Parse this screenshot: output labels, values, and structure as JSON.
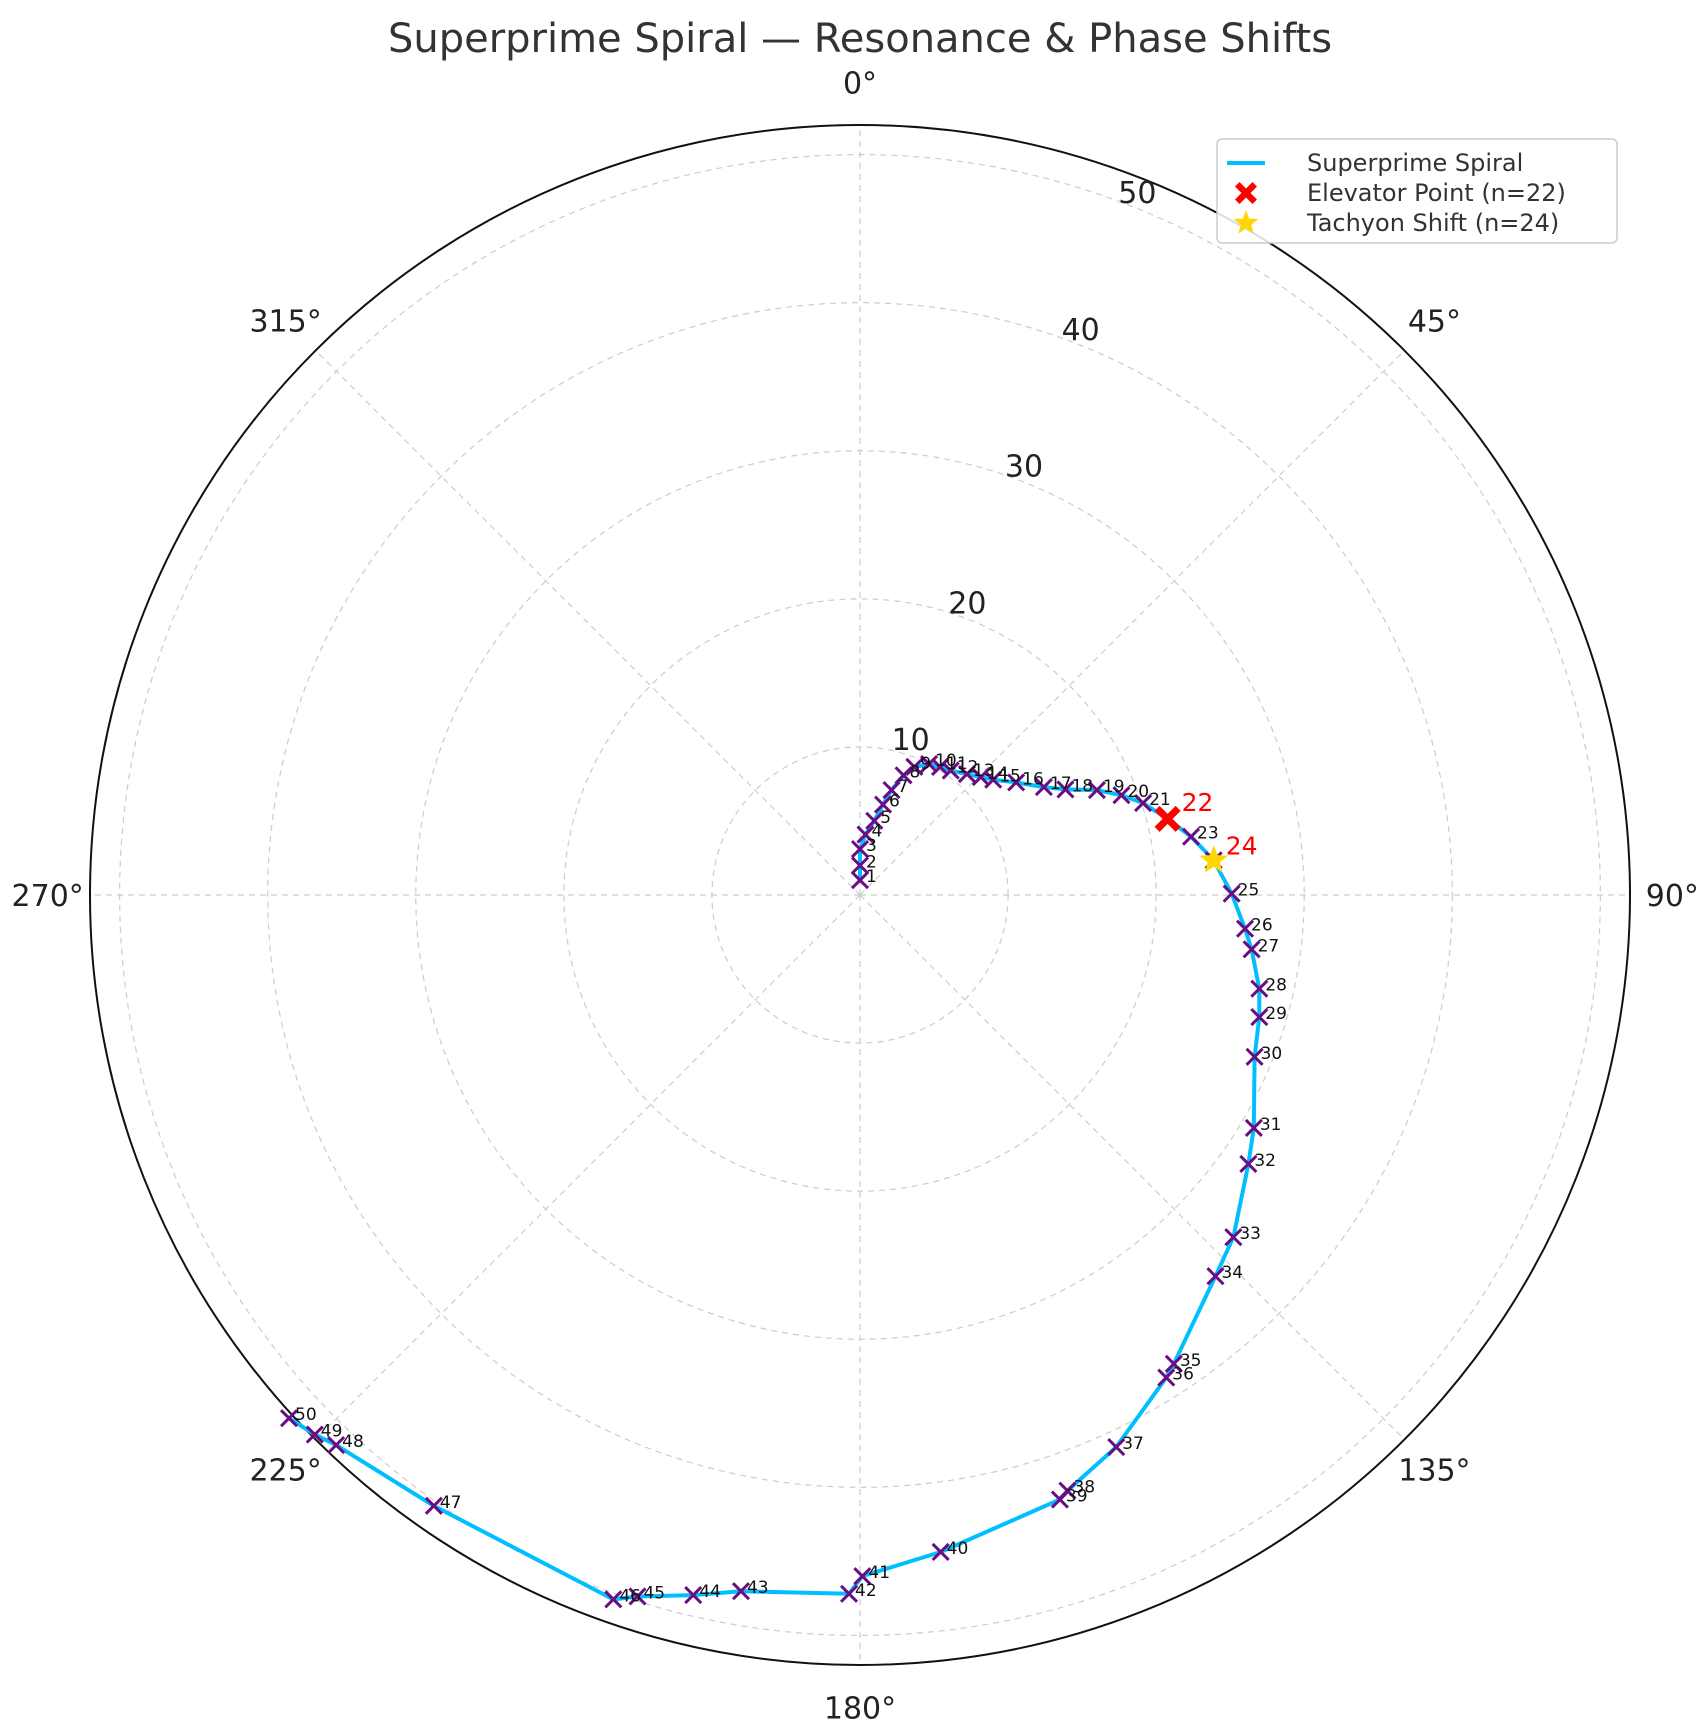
{
  "chart_data": {
    "type": "polar-line",
    "title": "Superprime Spiral — Resonance & Phase Shifts",
    "theta_direction": "clockwise",
    "theta_zero": "top",
    "theta_ticks": [
      "0°",
      "45°",
      "90°",
      "135°",
      "180°",
      "225°",
      "270°",
      "315°"
    ],
    "theta_tick_values": [
      0,
      45,
      90,
      135,
      180,
      225,
      270,
      315
    ],
    "r_ticks": [
      "10",
      "20",
      "30",
      "40",
      "50"
    ],
    "r_tick_values": [
      10,
      20,
      30,
      40,
      50
    ],
    "rlim": [
      0,
      52
    ],
    "grid": true,
    "legend_position": "top-right",
    "series": [
      {
        "name": "Superprime Spiral",
        "color": "#00bfff",
        "marker": "x",
        "marker_color": "#6a0d83",
        "n": [
          1,
          2,
          3,
          4,
          5,
          6,
          7,
          8,
          9,
          10,
          11,
          12,
          13,
          14,
          15,
          16,
          17,
          18,
          19,
          20,
          21,
          22,
          23,
          24,
          25,
          26,
          27,
          28,
          29,
          30,
          31,
          32,
          33,
          34,
          35,
          36,
          37,
          38,
          39,
          40,
          41,
          42,
          43,
          44,
          45,
          46,
          47,
          48,
          49,
          50
        ],
        "r": [
          1.0,
          2.0,
          3.1,
          4.1,
          5.1,
          6.3,
          7.4,
          8.6,
          9.4,
          10.0,
          10.2,
          10.4,
          10.9,
          11.4,
          11.9,
          13.0,
          14.4,
          15.6,
          17.5,
          18.9,
          20.1,
          21.4,
          22.7,
          24.0,
          25.1,
          26.1,
          26.7,
          27.7,
          28.2,
          28.8,
          30.9,
          31.9,
          34.2,
          35.2,
          38.1,
          38.6,
          41.1,
          42.6,
          43.0,
          44.7,
          46.0,
          47.2,
          47.7,
          48.6,
          49.7,
          50.4,
          50.3,
          51.3,
          51.8,
          52.3
        ],
        "theta": [
          0.0,
          0.0,
          0.0,
          5.2,
          10.9,
          14.3,
          16.7,
          20.0,
          23.0,
          27.8,
          32.0,
          36.1,
          41.5,
          45.7,
          49.1,
          54.2,
          59.6,
          62.8,
          66.1,
          69.1,
          72.0,
          76.1,
          80.0,
          84.4,
          89.8,
          95.0,
          97.9,
          103.2,
          107.0,
          112.3,
          120.6,
          124.7,
          132.5,
          137.0,
          146.2,
          147.6,
          155.1,
          160.8,
          161.7,
          173.0,
          179.8,
          180.9,
          189.7,
          193.4,
          197.6,
          199.3,
          214.9,
          223.6,
          225.3,
          227.5
        ],
        "labels": [
          "1",
          "2",
          "3",
          "4",
          "5",
          "6",
          "7",
          "8",
          "9",
          "10",
          "11",
          "12",
          "13",
          "14",
          "15",
          "16",
          "17",
          "18",
          "19",
          "20",
          "21",
          "22",
          "23",
          "24",
          "25",
          "26",
          "27",
          "28",
          "29",
          "30",
          "31",
          "32",
          "33",
          "34",
          "35",
          "36",
          "37",
          "38",
          "39",
          "40",
          "41",
          "42",
          "43",
          "44",
          "45",
          "46",
          "47",
          "48",
          "49",
          "50"
        ]
      },
      {
        "name": "Elevator Point (n=22)",
        "color": "#ff0000",
        "marker": "X",
        "n": 22,
        "r": 21.4,
        "theta": 76.1,
        "label": "22"
      },
      {
        "name": "Tachyon Shift (n=24)",
        "color": "#ffd700",
        "marker": "star",
        "n": 24,
        "r": 24.0,
        "theta": 84.4,
        "label": "24"
      }
    ]
  }
}
